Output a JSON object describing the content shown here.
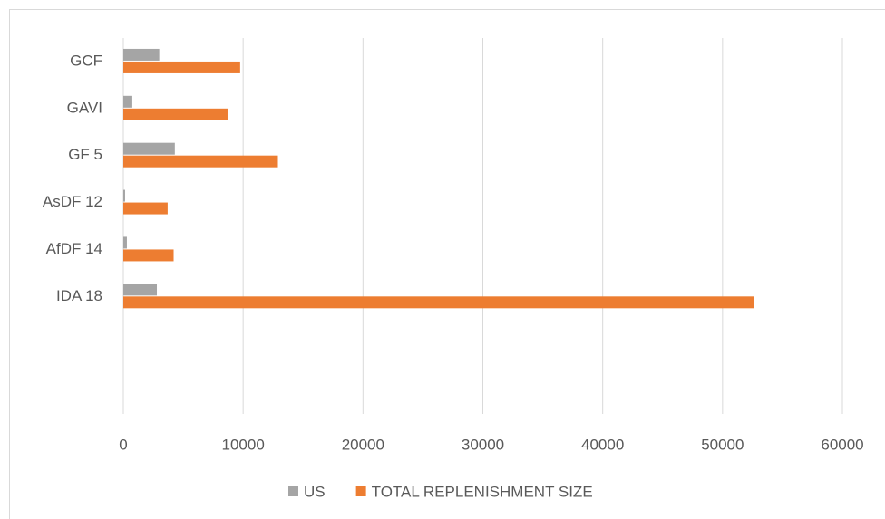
{
  "chart_data": {
    "type": "hbar",
    "categories": [
      null,
      null,
      "IDA 18",
      "AfDF 14",
      "AsDF 12",
      "GF 5",
      "GAVI",
      "GCF"
    ],
    "series": [
      {
        "name": "US",
        "color": "#a5a5a5",
        "values": [
          null,
          null,
          2800,
          300,
          150,
          4300,
          750,
          3000
        ]
      },
      {
        "name": "TOTAL REPLENISHMENT SIZE",
        "color": "#ed7d31",
        "values": [
          null,
          null,
          52600,
          4200,
          3700,
          12900,
          8700,
          9750
        ]
      }
    ],
    "xlim": [
      0,
      60000
    ],
    "xticks": [
      0,
      10000,
      20000,
      30000,
      40000,
      50000,
      60000
    ],
    "grid": true,
    "legend": "bottom"
  }
}
